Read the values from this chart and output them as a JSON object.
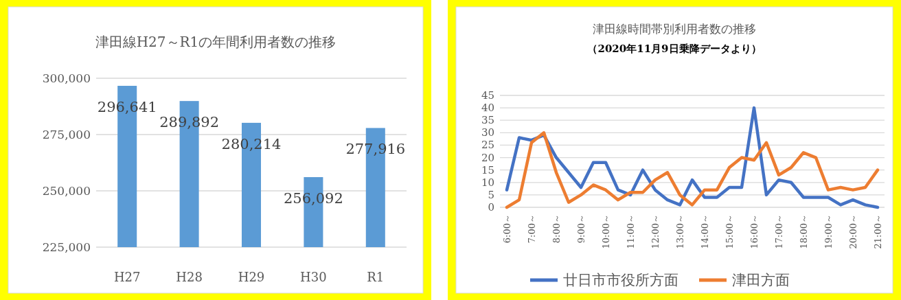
{
  "chart_data": [
    {
      "type": "bar",
      "title": "津田線H27～R1の年間利用者数の推移",
      "categories": [
        "H27",
        "H28",
        "H29",
        "H30",
        "R1"
      ],
      "values": [
        296641,
        289892,
        280214,
        256092,
        277916
      ],
      "value_labels": [
        "296,641",
        "289,892",
        "280,214",
        "256,092",
        "277,916"
      ],
      "color": "#5b9bd5",
      "ylim": [
        225000,
        300000
      ],
      "yticks": [
        {
          "value": 225000,
          "label": "225,000"
        },
        {
          "value": 250000,
          "label": "250,000"
        },
        {
          "value": 275000,
          "label": "275,000"
        },
        {
          "value": 300000,
          "label": "300,000"
        }
      ],
      "grid": "y"
    },
    {
      "type": "line",
      "title": "津田線時間帯別利用者数の推移",
      "subtitle": "（2020年11月9日乗降データより）",
      "categories": [
        "6:00～",
        null,
        "7:00～",
        null,
        "8:00～",
        null,
        "9:00～",
        null,
        "10:00～",
        null,
        "11:00～",
        null,
        "12:00～",
        null,
        "13:00～",
        null,
        "14:00～",
        null,
        "15:00～",
        null,
        "16:00～",
        null,
        "17:00～",
        null,
        "18:00～",
        null,
        "19:00～",
        null,
        "20:00～",
        null,
        "21:00～"
      ],
      "series": [
        {
          "name": "廿日市市役所方面",
          "color": "#4472c4",
          "values": [
            7,
            28,
            27,
            29,
            20,
            14,
            8,
            18,
            18,
            7,
            5,
            15,
            7,
            3,
            1,
            11,
            4,
            4,
            8,
            8,
            40,
            5,
            11,
            10,
            4,
            4,
            4,
            1,
            3,
            1,
            0
          ]
        },
        {
          "name": "津田方面",
          "color": "#ed7d31",
          "values": [
            0,
            3,
            26,
            30,
            14,
            2,
            5,
            9,
            7,
            3,
            6,
            6,
            11,
            14,
            5,
            1,
            7,
            7,
            16,
            20,
            19,
            26,
            13,
            16,
            22,
            20,
            7,
            8,
            7,
            8,
            15
          ]
        }
      ],
      "ylim": [
        0,
        45
      ],
      "yticks": [
        0,
        5,
        10,
        15,
        20,
        25,
        30,
        35,
        40,
        45
      ],
      "grid": "y",
      "legend": "bottom",
      "marker": "none",
      "line_style": "solid"
    }
  ]
}
